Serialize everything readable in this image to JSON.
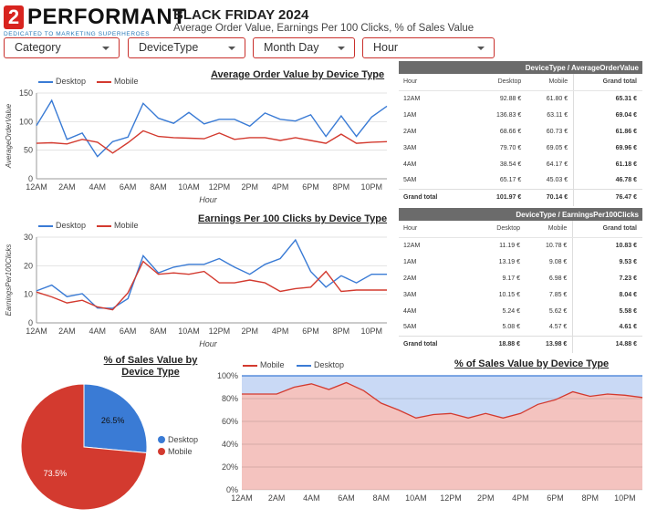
{
  "header": {
    "logo_mark": "2",
    "logo_word": "PERFORMANT",
    "logo_tagline": "DEDICATED TO MARKETING SUPERHEROES",
    "title": "BLACK FRIDAY 2024",
    "subtitle": "Average Order Value, Earnings Per 100 Clicks, % of Sales Value"
  },
  "filters": [
    {
      "label": "Category"
    },
    {
      "label": "DeviceType"
    },
    {
      "label": "Month Day"
    },
    {
      "label": "Hour"
    }
  ],
  "colors": {
    "desktop": "#3a7bd5",
    "mobile": "#d33a2f",
    "brand": "#d8241f"
  },
  "chart_data": [
    {
      "type": "line",
      "title": "Average Order Value by Device Type",
      "xlabel": "Hour",
      "ylabel": "AverageOrderValue",
      "ylim": [
        0,
        150
      ],
      "yticks": [
        0,
        50,
        100,
        150
      ],
      "x_tick_labels": [
        "12AM",
        "2AM",
        "4AM",
        "6AM",
        "8AM",
        "10AM",
        "12PM",
        "2PM",
        "4PM",
        "6PM",
        "8PM",
        "10PM"
      ],
      "legend": [
        "Desktop",
        "Mobile"
      ],
      "series": [
        {
          "name": "Desktop",
          "values": [
            93,
            137,
            69,
            80,
            39,
            65,
            73,
            132,
            106,
            97,
            116,
            96,
            104,
            104,
            92,
            115,
            104,
            101,
            112,
            74,
            110,
            74,
            108,
            127
          ]
        },
        {
          "name": "Mobile",
          "values": [
            62,
            63,
            61,
            69,
            64,
            45,
            63,
            84,
            74,
            72,
            71,
            70,
            80,
            69,
            72,
            72,
            67,
            72,
            67,
            62,
            78,
            62,
            64,
            65
          ]
        }
      ]
    },
    {
      "type": "line",
      "title": "Earnings Per 100 Clicks by Device Type",
      "xlabel": "Hour",
      "ylabel": "EarningsPer100Clicks",
      "ylim": [
        0,
        30
      ],
      "yticks": [
        0,
        10,
        20,
        30
      ],
      "x_tick_labels": [
        "12AM",
        "2AM",
        "4AM",
        "6AM",
        "8AM",
        "10AM",
        "12PM",
        "2PM",
        "4PM",
        "6PM",
        "8PM",
        "10PM"
      ],
      "legend": [
        "Desktop",
        "Mobile"
      ],
      "series": [
        {
          "name": "Desktop",
          "values": [
            11.2,
            13.2,
            9.2,
            10.2,
            5.2,
            5.1,
            8.5,
            23.5,
            17.5,
            19.5,
            20.5,
            20.5,
            22.5,
            19.5,
            17,
            20.5,
            22.5,
            29,
            18,
            12.5,
            16.5,
            14,
            17,
            17
          ]
        },
        {
          "name": "Mobile",
          "values": [
            10.8,
            9.1,
            7.0,
            7.9,
            5.6,
            4.6,
            10.5,
            21.5,
            17,
            17.5,
            17,
            18,
            14,
            14,
            15,
            14,
            11,
            12,
            12.5,
            18,
            11,
            11.5,
            11.5,
            11.5
          ]
        }
      ]
    },
    {
      "type": "pie",
      "title": "% of Sales Value by Device Type",
      "legend": [
        "Desktop",
        "Mobile"
      ],
      "slices": [
        {
          "name": "Desktop",
          "value": 26.5,
          "label": "26.5%"
        },
        {
          "name": "Mobile",
          "value": 73.5,
          "label": "73.5%"
        }
      ]
    },
    {
      "type": "area",
      "title": "% of Sales Value by Device Type",
      "ylim": [
        0,
        100
      ],
      "yticks": [
        "0%",
        "20%",
        "40%",
        "60%",
        "80%",
        "100%"
      ],
      "x_tick_labels": [
        "12AM",
        "2AM",
        "4AM",
        "6AM",
        "8AM",
        "10AM",
        "12PM",
        "2PM",
        "4PM",
        "6PM",
        "8PM",
        "10PM"
      ],
      "legend": [
        "Mobile",
        "Desktop"
      ],
      "stacked_percent": true,
      "series": [
        {
          "name": "Mobile",
          "values": [
            84,
            84,
            84,
            90,
            93,
            88,
            94,
            87,
            76,
            70,
            63,
            66,
            67,
            63,
            67,
            63,
            67,
            75,
            79,
            86,
            82,
            84,
            83,
            81
          ]
        },
        {
          "name": "Desktop",
          "values": [
            16,
            16,
            16,
            10,
            7,
            12,
            6,
            13,
            24,
            30,
            37,
            34,
            33,
            37,
            33,
            37,
            33,
            25,
            21,
            14,
            18,
            16,
            17,
            19
          ]
        }
      ]
    }
  ],
  "tables": {
    "aov": {
      "header": "DeviceType / AverageOrderValue",
      "columns": [
        "Hour",
        "Desktop",
        "Mobile",
        "Grand total"
      ],
      "rows": [
        [
          "12AM",
          "92.88 €",
          "61.80 €",
          "65.31 €"
        ],
        [
          "1AM",
          "136.83 €",
          "63.11 €",
          "69.04 €"
        ],
        [
          "2AM",
          "68.66 €",
          "60.73 €",
          "61.86 €"
        ],
        [
          "3AM",
          "79.70 €",
          "69.05 €",
          "69.96 €"
        ],
        [
          "4AM",
          "38.54 €",
          "64.17 €",
          "61.18 €"
        ],
        [
          "5AM",
          "65.17 €",
          "45.03 €",
          "46.78 €"
        ]
      ],
      "total": [
        "Grand total",
        "101.97 €",
        "70.14 €",
        "76.47 €"
      ]
    },
    "epc": {
      "header": "DeviceType / EarningsPer100Clicks",
      "columns": [
        "Hour",
        "Desktop",
        "Mobile",
        "Grand total"
      ],
      "rows": [
        [
          "12AM",
          "11.19 €",
          "10.78 €",
          "10.83 €"
        ],
        [
          "1AM",
          "13.19 €",
          "9.08 €",
          "9.53 €"
        ],
        [
          "2AM",
          "9.17 €",
          "6.98 €",
          "7.23 €"
        ],
        [
          "3AM",
          "10.15 €",
          "7.85 €",
          "8.04 €"
        ],
        [
          "4AM",
          "5.24 €",
          "5.62 €",
          "5.58 €"
        ],
        [
          "5AM",
          "5.08 €",
          "4.57 €",
          "4.61 €"
        ]
      ],
      "total": [
        "Grand total",
        "18.88 €",
        "13.98 €",
        "14.88 €"
      ]
    }
  }
}
